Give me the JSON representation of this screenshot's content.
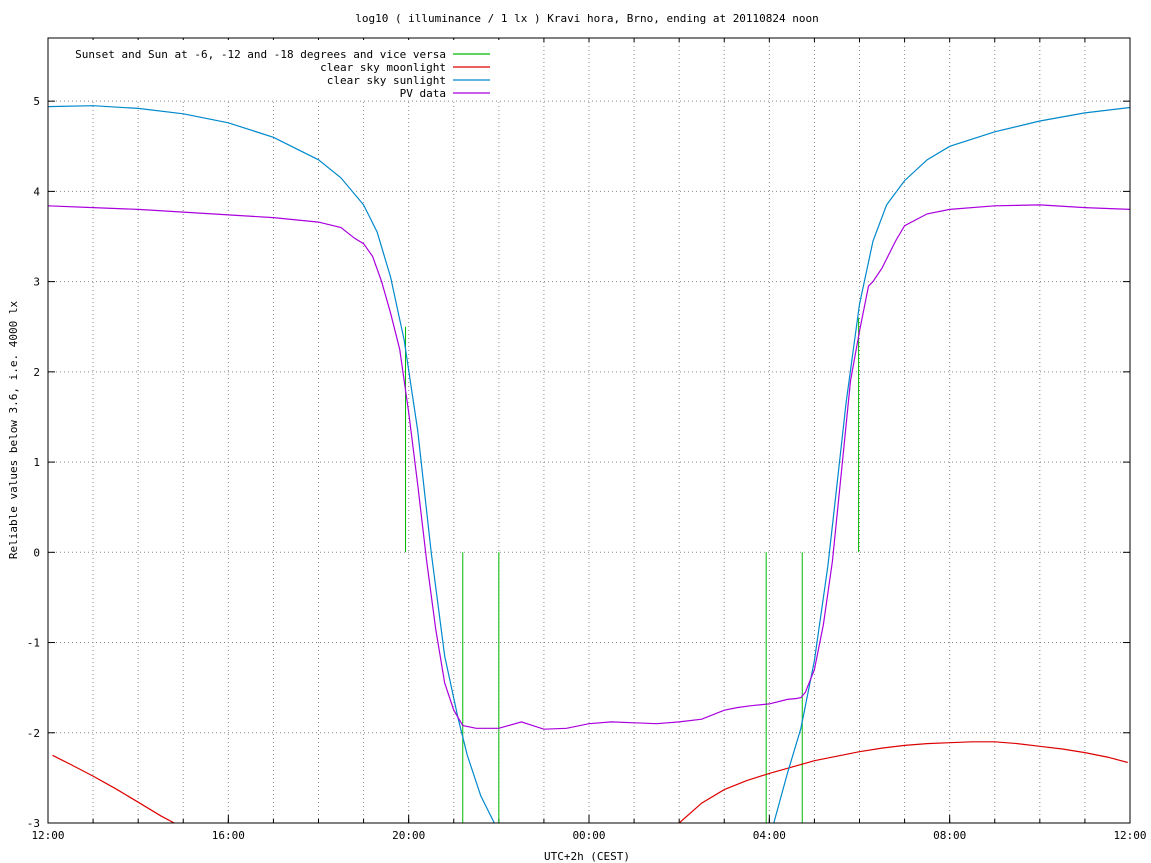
{
  "chart_data": {
    "type": "line",
    "title": "log10 ( illuminance / 1 lx ) Kravi hora, Brno, ending at 20110824 noon",
    "xlabel": "UTC+2h (CEST)",
    "ylabel": "Reliable values below 3.6, i.e. 4000 lx",
    "x_unit": "hours (local time, CEST) from 12:00 on day 1 to 12:00 on day 2",
    "xlim": [
      12,
      36
    ],
    "ylim": [
      -3,
      5.7
    ],
    "x_ticks": [
      {
        "x": 12,
        "label": "12:00"
      },
      {
        "x": 16,
        "label": "16:00"
      },
      {
        "x": 20,
        "label": "20:00"
      },
      {
        "x": 24,
        "label": "00:00"
      },
      {
        "x": 28,
        "label": "04:00"
      },
      {
        "x": 32,
        "label": "08:00"
      },
      {
        "x": 36,
        "label": "12:00"
      }
    ],
    "y_ticks": [
      -3,
      -2,
      -1,
      0,
      1,
      2,
      3,
      4,
      5
    ],
    "grid": true,
    "legend_position": "top-left",
    "series": [
      {
        "name": "Sunset and Sun at -6, -12 and -18 degrees and vice versa",
        "color": "#00bb00",
        "kind": "vlines",
        "x": [
          19.93,
          21.2,
          22.0,
          27.93,
          28.73,
          29.98
        ],
        "y0": [
          0,
          0,
          0,
          0,
          0,
          0
        ],
        "y1": [
          2.5,
          -3,
          -3,
          -3,
          -3,
          2.6
        ]
      },
      {
        "name": "clear sky moonlight",
        "color": "#dd0000",
        "segments": [
          {
            "x": [
              12.1,
              12.5,
              13.0,
              13.5,
              14.0,
              14.5,
              14.8
            ],
            "y": [
              -2.25,
              -2.35,
              -2.48,
              -2.62,
              -2.77,
              -2.92,
              -3.0
            ]
          },
          {
            "x": [
              26.0,
              26.5,
              27.0,
              27.5,
              28.0,
              28.5,
              29.0,
              29.5,
              30.0,
              30.5,
              31.0,
              31.5,
              32.0,
              32.5,
              33.0,
              33.5,
              34.0,
              34.5,
              35.0,
              35.5,
              35.95
            ],
            "y": [
              -3.0,
              -2.78,
              -2.63,
              -2.53,
              -2.45,
              -2.38,
              -2.31,
              -2.26,
              -2.21,
              -2.17,
              -2.14,
              -2.12,
              -2.11,
              -2.1,
              -2.1,
              -2.12,
              -2.15,
              -2.18,
              -2.22,
              -2.27,
              -2.33
            ]
          }
        ]
      },
      {
        "name": "clear sky sunlight",
        "color": "#0088cc",
        "segments": [
          {
            "x": [
              12.0,
              13.0,
              14.0,
              15.0,
              16.0,
              17.0,
              18.0,
              18.5,
              19.0,
              19.3,
              19.6,
              19.9,
              20.2,
              20.5,
              20.8,
              21.1,
              21.3,
              21.6,
              21.9
            ],
            "y": [
              4.94,
              4.95,
              4.92,
              4.86,
              4.76,
              4.6,
              4.35,
              4.15,
              3.85,
              3.55,
              3.05,
              2.35,
              1.35,
              0.0,
              -1.15,
              -1.85,
              -2.25,
              -2.7,
              -3.0
            ]
          },
          {
            "x": [
              28.1,
              28.4,
              28.7,
              29.0,
              29.3,
              29.5,
              29.7,
              30.0,
              30.3,
              30.6,
              31.0,
              31.5,
              32.0,
              33.0,
              34.0,
              35.0,
              36.0
            ],
            "y": [
              -3.0,
              -2.45,
              -1.95,
              -1.2,
              -0.15,
              0.75,
              1.65,
              2.75,
              3.45,
              3.85,
              4.12,
              4.35,
              4.5,
              4.66,
              4.78,
              4.87,
              4.93
            ]
          }
        ]
      },
      {
        "name": "PV data",
        "color": "#aa00dd",
        "segments": [
          {
            "x": [
              12.0,
              13.0,
              14.0,
              15.0,
              16.0,
              17.0,
              18.0,
              18.5,
              18.8,
              19.0,
              19.2,
              19.4,
              19.6,
              19.8,
              20.0,
              20.2,
              20.4,
              20.6,
              20.8,
              21.0,
              21.2,
              21.5,
              22.0,
              22.5,
              23.0,
              23.5,
              24.0,
              24.5,
              25.0,
              25.5,
              26.0,
              26.5,
              27.0,
              27.3,
              27.6,
              28.0,
              28.4,
              28.6,
              28.7,
              28.8,
              29.0,
              29.2,
              29.4,
              29.6,
              29.8,
              30.0,
              30.2,
              30.3,
              30.5,
              30.8,
              31.0,
              31.5,
              32.0,
              33.0,
              34.0,
              35.0,
              36.0
            ],
            "y": [
              3.84,
              3.82,
              3.8,
              3.77,
              3.74,
              3.71,
              3.66,
              3.6,
              3.48,
              3.42,
              3.28,
              3.0,
              2.65,
              2.25,
              1.55,
              0.75,
              -0.1,
              -0.85,
              -1.45,
              -1.75,
              -1.92,
              -1.95,
              -1.95,
              -1.88,
              -1.96,
              -1.95,
              -1.9,
              -1.88,
              -1.89,
              -1.9,
              -1.88,
              -1.85,
              -1.75,
              -1.72,
              -1.7,
              -1.68,
              -1.63,
              -1.62,
              -1.61,
              -1.55,
              -1.3,
              -0.8,
              -0.1,
              0.9,
              1.9,
              2.45,
              2.95,
              3.0,
              3.15,
              3.45,
              3.62,
              3.75,
              3.8,
              3.84,
              3.85,
              3.82,
              3.8
            ]
          }
        ]
      }
    ]
  }
}
